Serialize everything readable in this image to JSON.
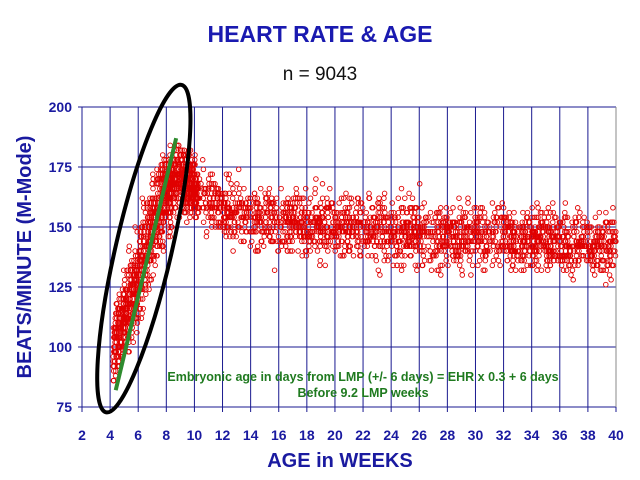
{
  "chart_data": {
    "type": "scatter",
    "title": "HEART RATE & AGE",
    "subtitle": "n = 9043",
    "xlabel": "AGE in WEEKS",
    "ylabel": "BEATS/MINUTE (M-Mode)",
    "xlim": [
      2,
      40
    ],
    "ylim": [
      75,
      200
    ],
    "xticks": [
      2,
      4,
      6,
      8,
      10,
      12,
      14,
      16,
      18,
      20,
      22,
      24,
      26,
      28,
      30,
      32,
      34,
      36,
      38,
      40
    ],
    "yticks": [
      75,
      100,
      125,
      150,
      175,
      200
    ],
    "grid": true,
    "n": 9043,
    "trend_bins": {
      "weeks": [
        4.3,
        5,
        6,
        7,
        8,
        9,
        10,
        12,
        14,
        16,
        20,
        24,
        30,
        36,
        40
      ],
      "mean_bpm": [
        100,
        112,
        130,
        150,
        165,
        172,
        166,
        158,
        155,
        152,
        150,
        148,
        146,
        144,
        143
      ],
      "spread_bpm": [
        10,
        12,
        14,
        14,
        12,
        10,
        9,
        9,
        9,
        9,
        9,
        9,
        9,
        9,
        9
      ]
    },
    "regression_line": {
      "x": [
        4.4,
        8.7
      ],
      "y": [
        82,
        187
      ],
      "color": "#2e8b2e"
    },
    "highlight_ellipse": {
      "color": "#000000"
    },
    "point_color": "#e00000",
    "grid_color": "#1a1a90",
    "annotation": {
      "line1": "Embryonic age in days from LMP (+/- 6 days) = EHR x 0.3 + 6 days",
      "line2": "Before 9.2 LMP weeks"
    }
  }
}
